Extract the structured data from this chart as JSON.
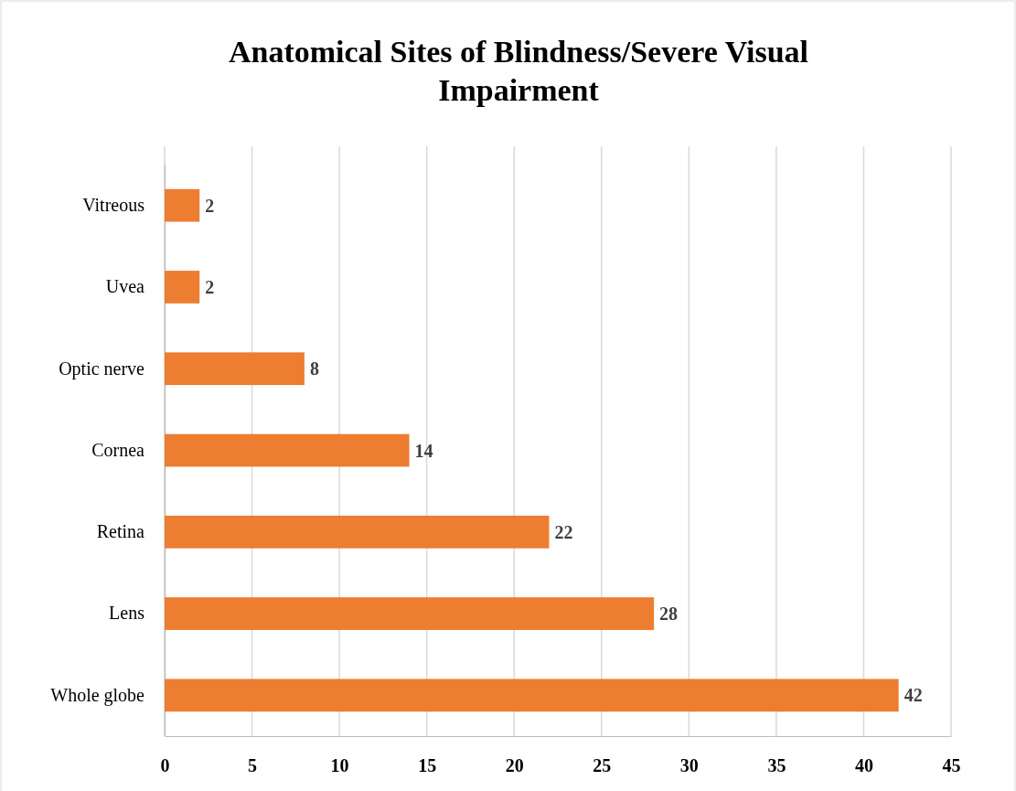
{
  "chart_data": {
    "type": "bar",
    "orientation": "horizontal",
    "title": "Anatomical Sites of Blindness/Severe Visual Impairment",
    "categories": [
      "Vitreous",
      "Uvea",
      "Optic nerve",
      "Cornea",
      "Retina",
      "Lens",
      "Whole globe"
    ],
    "values": [
      2,
      2,
      8,
      14,
      22,
      28,
      42
    ],
    "color": "#ed7d31",
    "xlim": [
      0,
      45
    ],
    "xticks": [
      0,
      5,
      10,
      15,
      20,
      25,
      30,
      35,
      40,
      45
    ],
    "grid": "x",
    "data_labels": true
  }
}
